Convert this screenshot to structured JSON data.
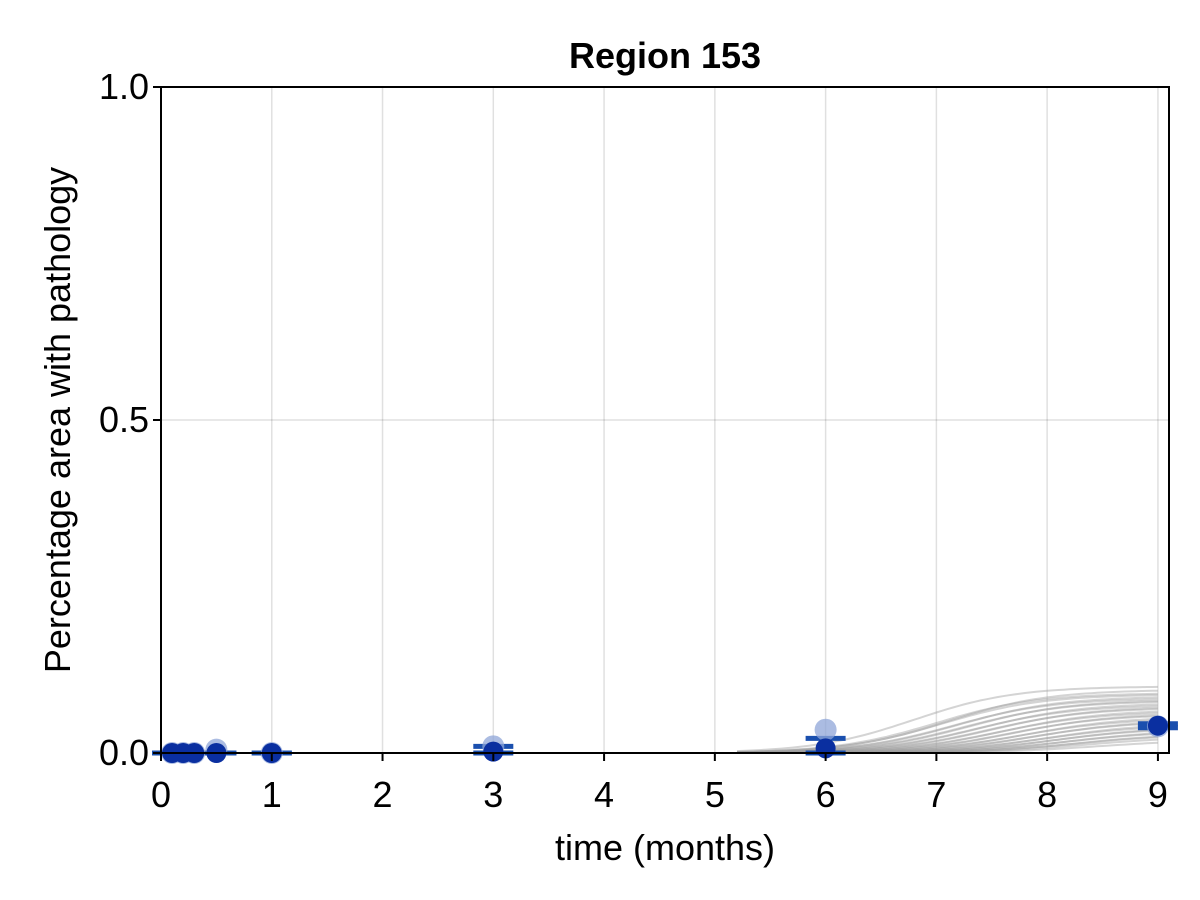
{
  "chart_data": {
    "type": "scatter",
    "title": "Region 153",
    "xlabel": "time (months)",
    "ylabel": "Percentage area with pathology",
    "xlim": [
      0,
      9.1
    ],
    "ylim": [
      0,
      1.0
    ],
    "xticks": [
      0,
      1,
      2,
      3,
      4,
      5,
      6,
      7,
      8,
      9
    ],
    "xtick_labels": [
      "0",
      "1",
      "2",
      "3",
      "4",
      "5",
      "6",
      "7",
      "8",
      "9"
    ],
    "yticks": [
      0.0,
      0.5,
      1.0
    ],
    "ytick_labels": [
      "0.0",
      "0.5",
      "1.0"
    ],
    "grid": true,
    "colors": {
      "mean_marker": "#0a2fa0",
      "raw_marker": "#8fa6d8",
      "error_bar": "#1a4fae",
      "posterior_curves": "#a0a0a0"
    },
    "series": [
      {
        "kind": "raw_points",
        "x": [
          0.1,
          0.2,
          0.3,
          0.5,
          1,
          3,
          6,
          9
        ],
        "y": [
          0.0,
          0.0,
          0.0,
          0.005,
          0.0,
          0.01,
          0.035,
          0.04
        ]
      },
      {
        "kind": "mean_with_error",
        "x": [
          0.1,
          0.2,
          0.3,
          0.5,
          1,
          3,
          6,
          9
        ],
        "y": [
          0.0,
          0.0,
          0.0,
          0.0,
          0.0,
          0.002,
          0.007,
          0.041
        ],
        "err_low": [
          0.0,
          0.0,
          0.0,
          0.0,
          0.0,
          0.0,
          0.0,
          0.038
        ],
        "err_high": [
          0.0,
          0.0,
          0.0,
          0.0,
          0.0,
          0.01,
          0.022,
          0.044
        ]
      },
      {
        "kind": "posterior_curves",
        "onset": 5.2,
        "peaks": [
          0.09,
          0.1,
          0.095,
          0.085,
          0.08,
          0.075,
          0.07,
          0.065,
          0.06,
          0.055,
          0.05,
          0.045,
          0.04,
          0.035,
          0.03,
          0.088,
          0.082,
          0.078,
          0.072,
          0.068,
          0.062,
          0.058,
          0.052,
          0.048,
          0.042,
          0.038,
          0.033,
          0.028,
          0.025,
          0.02
        ],
        "midpoints": [
          7.0,
          6.8,
          7.1,
          7.2,
          7.3,
          7.4,
          7.5,
          7.6,
          7.7,
          7.8,
          7.9,
          8.0,
          8.1,
          8.2,
          8.3,
          7.05,
          7.15,
          7.25,
          7.35,
          7.45,
          7.55,
          7.65,
          7.75,
          7.85,
          7.95,
          8.05,
          8.15,
          8.25,
          8.35,
          8.45
        ]
      }
    ]
  }
}
